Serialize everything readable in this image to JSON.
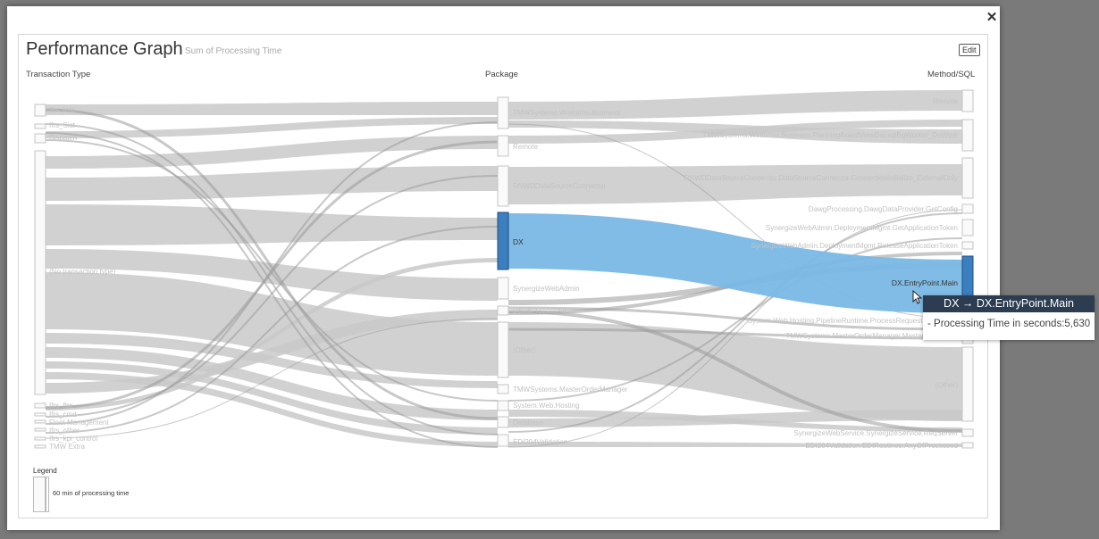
{
  "modal": {
    "close_icon": "close-icon"
  },
  "header": {
    "title": "Performance Graph",
    "subtitle": "Sum of Processing Time",
    "edit_label": "Edit"
  },
  "columns": {
    "left": "Transaction Type",
    "middle": "Package",
    "right": "Method/SQL"
  },
  "left_nodes": [
    "Ifrs_Info",
    "Ifrs_Sist",
    "Dispatch",
    "(No transaction type)",
    "Ifrs_ftm",
    "Ifrs_cmd",
    "Fleet Management",
    "Ifrs_other",
    "Ifrs_kpi_control",
    "TMW Extra"
  ],
  "middle_nodes": [
    "TMWSystems.Winforms.Business",
    "Remote",
    "RNWDDataSourceConnector",
    "DX",
    "SynergizeWebAdmin",
    "DawgProcessing",
    "(Other)",
    "TMWSystems.MasterOrderManager",
    "System.Web.Hosting",
    "Database",
    "EDI204Validation"
  ],
  "right_nodes": [
    "Remote",
    "TMWSystems.Winforms.Business.PlanningBoardViewDal.sqlBgWorker_DoWork",
    "RNWDDataSourceConnector.DataSourceConnector.ConnectionInitialize_ExternalOnly",
    "DawgProcessing.DawgDataProvider.GetConfig",
    "SynergizeWebAdmin.DeploymentMgmt.GetApplicationToken",
    "SynergizeWebAdmin.DeploymentMgmt.ReleaseApplicationToken",
    "DX.EntryPoint.Main",
    "System.Web.Hosting.PipelineRuntime.ProcessRequestNotification",
    "TMWSystems.MasterOrderManager.MasterOrderMain",
    "(Other)",
    "SynergizeWebService.SynergizeService.ReqServer",
    "EDI204Validation.EDIRoutines.AnyOfProcessed"
  ],
  "legend": {
    "title": "Legend",
    "text": "60 min of processing time"
  },
  "tooltip": {
    "title": "DX → DX.EntryPoint.Main",
    "body": "- Processing Time in seconds:5,630"
  },
  "colors": {
    "highlight": "#7ab8e6",
    "highlight_node": "#3b7fc0",
    "link": "#c8c8c8",
    "tooltip_header": "#2c3d52"
  }
}
